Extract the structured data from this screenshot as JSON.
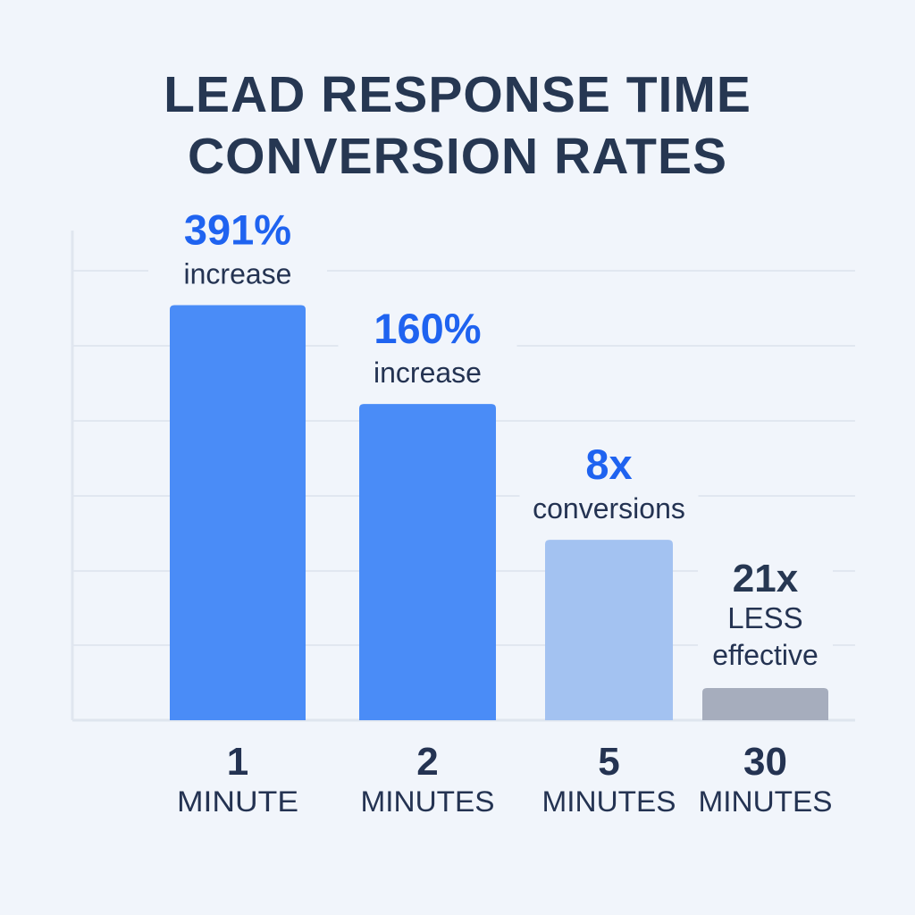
{
  "chart_data": {
    "type": "bar",
    "title": [
      "LEAD RESPONSE TIME",
      "CONVERSION RATES"
    ],
    "xlabel": "",
    "ylabel": "",
    "ylim": [
      0,
      100
    ],
    "grid": true,
    "categories": [
      {
        "number": "1",
        "unit": "MINUTE"
      },
      {
        "number": "2",
        "unit": "MINUTES"
      },
      {
        "number": "5",
        "unit": "MINUTES"
      },
      {
        "number": "30",
        "unit": "MINUTES"
      }
    ],
    "values": [
      84,
      64,
      36.5,
      6.5
    ],
    "annotations": [
      {
        "headline": "391%",
        "lines": [
          "increase"
        ],
        "headline_color": "#1f63f0"
      },
      {
        "headline": "160%",
        "lines": [
          "increase"
        ],
        "headline_color": "#1f63f0"
      },
      {
        "headline": "8x",
        "lines": [
          "conversions"
        ],
        "headline_color": "#1f63f0"
      },
      {
        "headline": "21x",
        "lines": [
          "LESS",
          "effective"
        ],
        "headline_color": "#263752"
      }
    ],
    "bar_colors": [
      "#4a8cf7",
      "#4a8cf7",
      "#a3c2f1",
      "#a6adbd"
    ]
  },
  "colors": {
    "background": "#f1f5fb",
    "text_dark": "#243352",
    "accent_blue": "#1f63f0",
    "grid": "#e1e7f0"
  }
}
